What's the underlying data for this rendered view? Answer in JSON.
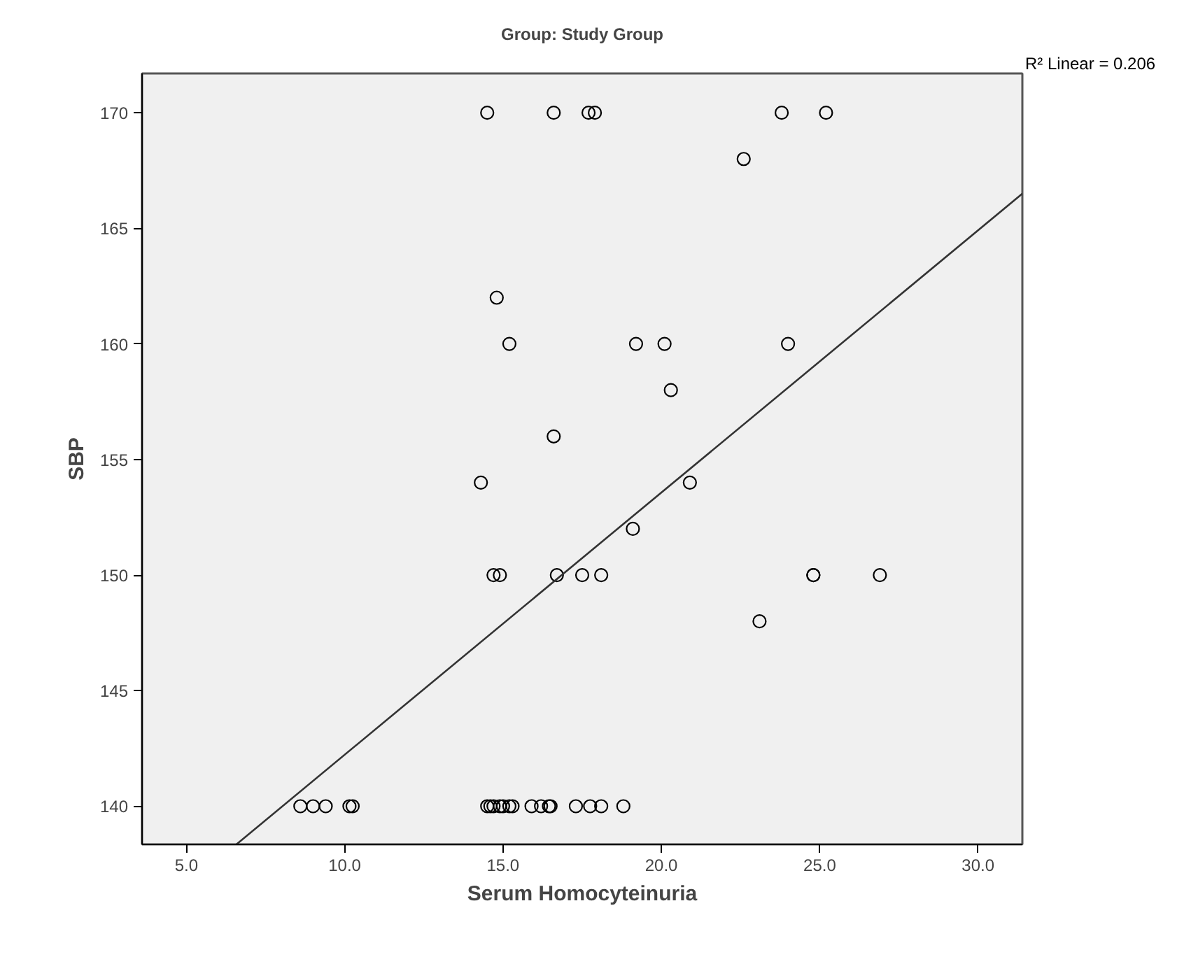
{
  "chart_data": {
    "type": "scatter",
    "title": "Group: Study Group",
    "xlabel": "Serum Homocyteinuria",
    "ylabel": "SBP",
    "annotations": [
      "R² Linear = 0.206"
    ],
    "xlim": [
      3.6,
      31.4
    ],
    "ylim": [
      138.35,
      171.7
    ],
    "xticks": [
      {
        "value": 5,
        "label": "5.0"
      },
      {
        "value": 10,
        "label": "10.0"
      },
      {
        "value": 15,
        "label": "15.0"
      },
      {
        "value": 20,
        "label": "20.0"
      },
      {
        "value": 25,
        "label": "25.0"
      },
      {
        "value": 30,
        "label": "30.0"
      }
    ],
    "yticks": [
      140,
      145,
      150,
      155,
      160,
      165,
      170
    ],
    "grid": false,
    "series": [
      {
        "type": "scatter",
        "marker": "circle",
        "color": "#000000",
        "x": [
          14.5,
          16.6,
          17.7,
          17.9,
          23.8,
          25.2,
          22.6,
          14.8,
          15.2,
          19.2,
          20.1,
          24.0,
          20.3,
          16.6,
          14.3,
          20.9,
          19.1,
          14.7,
          14.9,
          16.7,
          17.5,
          18.1,
          24.8,
          24.8,
          26.9,
          23.1,
          8.6,
          9.0,
          9.4,
          10.15,
          10.25,
          14.5,
          14.6,
          14.7,
          14.9,
          15.0,
          15.2,
          15.3,
          15.9,
          16.2,
          16.45,
          16.5,
          17.3,
          17.75,
          18.1,
          18.8
        ],
        "values": [
          170,
          170,
          170,
          170,
          170,
          170,
          168,
          162,
          160,
          160,
          160,
          160,
          158,
          156,
          154,
          154,
          152,
          150,
          150,
          150,
          150,
          150,
          150,
          150,
          150,
          148,
          140,
          140,
          140,
          140,
          140,
          140,
          140,
          140,
          140,
          140,
          140,
          140,
          140,
          140,
          140,
          140,
          140,
          140,
          140,
          140
        ]
      },
      {
        "type": "line",
        "color": "#333333",
        "x": [
          6.58,
          31.4
        ],
        "values": [
          138.35,
          166.5
        ]
      }
    ]
  }
}
